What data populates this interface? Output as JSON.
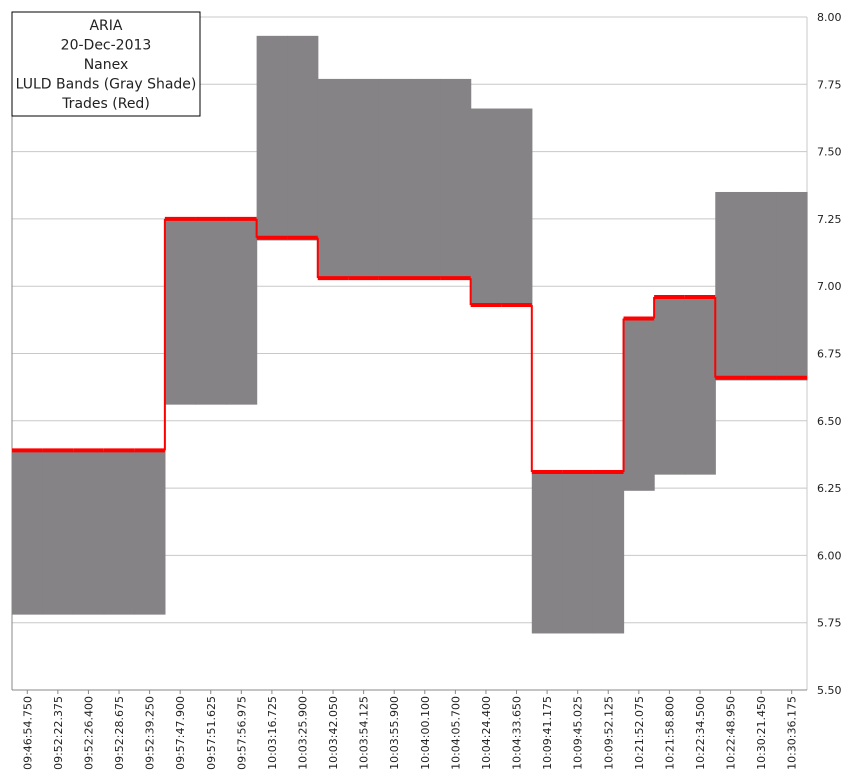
{
  "chart_data": {
    "type": "band-step",
    "title_lines": [
      "ARIA",
      "20-Dec-2013",
      "Nanex",
      "LULD Bands (Gray Shade)",
      "Trades (Red)"
    ],
    "categories": [
      "09:46:54.750",
      "09:52:22.375",
      "09:52:26.400",
      "09:52:28.675",
      "09:52:39.250",
      "09:57:47.900",
      "09:57:51.625",
      "09:57:56.975",
      "10:03:16.725",
      "10:03:25.900",
      "10:03:42.050",
      "10:03:54.125",
      "10:03:55.900",
      "10:04:00.100",
      "10:04:05.700",
      "10:04:24.400",
      "10:04:33.650",
      "10:09:41.175",
      "10:09:45.025",
      "10:09:52.125",
      "10:21:52.075",
      "10:21:58.800",
      "10:22:34.500",
      "10:22:48.950",
      "10:30:21.450",
      "10:30:36.175"
    ],
    "bands": {
      "color": "#858385",
      "upper": [
        6.39,
        6.39,
        6.39,
        6.39,
        6.39,
        7.25,
        7.25,
        7.25,
        7.93,
        7.93,
        7.77,
        7.77,
        7.77,
        7.77,
        7.77,
        7.66,
        7.66,
        6.31,
        6.31,
        6.31,
        6.88,
        6.96,
        6.96,
        7.35,
        7.35,
        7.35
      ],
      "lower": [
        5.78,
        5.78,
        5.78,
        5.78,
        5.78,
        6.56,
        6.56,
        6.56,
        7.17,
        7.17,
        7.03,
        7.03,
        7.03,
        7.03,
        7.03,
        6.93,
        6.93,
        5.71,
        5.71,
        5.71,
        6.24,
        6.3,
        6.3,
        6.65,
        6.65,
        6.65
      ]
    },
    "trades": {
      "color": "#ff0000",
      "values": [
        6.39,
        6.39,
        6.39,
        6.39,
        6.39,
        7.25,
        7.25,
        7.25,
        7.18,
        7.18,
        7.03,
        7.03,
        7.03,
        7.03,
        7.03,
        6.93,
        6.93,
        6.31,
        6.31,
        6.31,
        6.88,
        6.96,
        6.96,
        6.66,
        6.66,
        6.66
      ]
    },
    "ylim": [
      5.5,
      8.0
    ],
    "yticks": [
      {
        "value": 5.5,
        "label": "5.50"
      },
      {
        "value": 5.75,
        "label": "5.75"
      },
      {
        "value": 6.0,
        "label": "6.00"
      },
      {
        "value": 6.25,
        "label": "6.25"
      },
      {
        "value": 6.5,
        "label": "6.50"
      },
      {
        "value": 6.75,
        "label": "6.75"
      },
      {
        "value": 7.0,
        "label": "7.00"
      },
      {
        "value": 7.25,
        "label": "7.25"
      },
      {
        "value": 7.5,
        "label": "7.50"
      },
      {
        "value": 7.75,
        "label": "7.75"
      },
      {
        "value": 8.0,
        "label": "8.00"
      }
    ],
    "grid": true
  }
}
